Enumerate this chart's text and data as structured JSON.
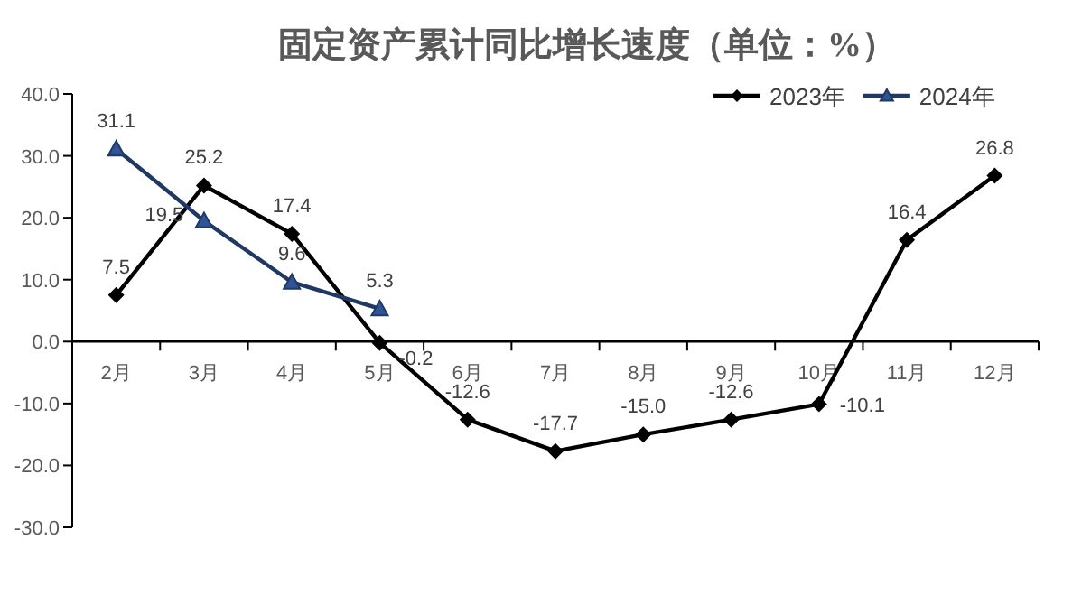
{
  "chart_data": {
    "type": "line",
    "title": "固定资产累计同比增长速度（单位：%）",
    "categories": [
      "2月",
      "3月",
      "4月",
      "5月",
      "6月",
      "7月",
      "8月",
      "9月",
      "10月",
      "11月",
      "12月"
    ],
    "series": [
      {
        "name": "2023年",
        "color": "#000000",
        "marker": "diamond",
        "values": [
          7.5,
          25.2,
          17.4,
          -0.2,
          -12.6,
          -17.7,
          -15.0,
          -12.6,
          -10.1,
          16.4,
          26.8
        ],
        "value_labels": [
          "7.5",
          "25.2",
          "17.4",
          "-0.2",
          "-12.6",
          "-17.7",
          "-15.0",
          "-12.6",
          "-10.1",
          "16.4",
          "26.8"
        ]
      },
      {
        "name": "2024年",
        "color": "#1f3864",
        "marker": "triangle",
        "values": [
          31.1,
          19.5,
          9.6,
          5.3,
          null,
          null,
          null,
          null,
          null,
          null,
          null
        ],
        "value_labels": [
          "31.1",
          "19.5",
          "9.6",
          "5.3",
          null,
          null,
          null,
          null,
          null,
          null,
          null
        ]
      }
    ],
    "ylim": [
      -30,
      40
    ],
    "yticks": [
      {
        "value": -30,
        "label": "-30.0"
      },
      {
        "value": -20,
        "label": "-20.0"
      },
      {
        "value": -10,
        "label": "-10.0"
      },
      {
        "value": 0,
        "label": "0.0"
      },
      {
        "value": 10,
        "label": "10.0"
      },
      {
        "value": 20,
        "label": "20.0"
      },
      {
        "value": 30,
        "label": "30.0"
      },
      {
        "value": 40,
        "label": "40.0"
      }
    ],
    "legend": "top right",
    "grid": false
  }
}
